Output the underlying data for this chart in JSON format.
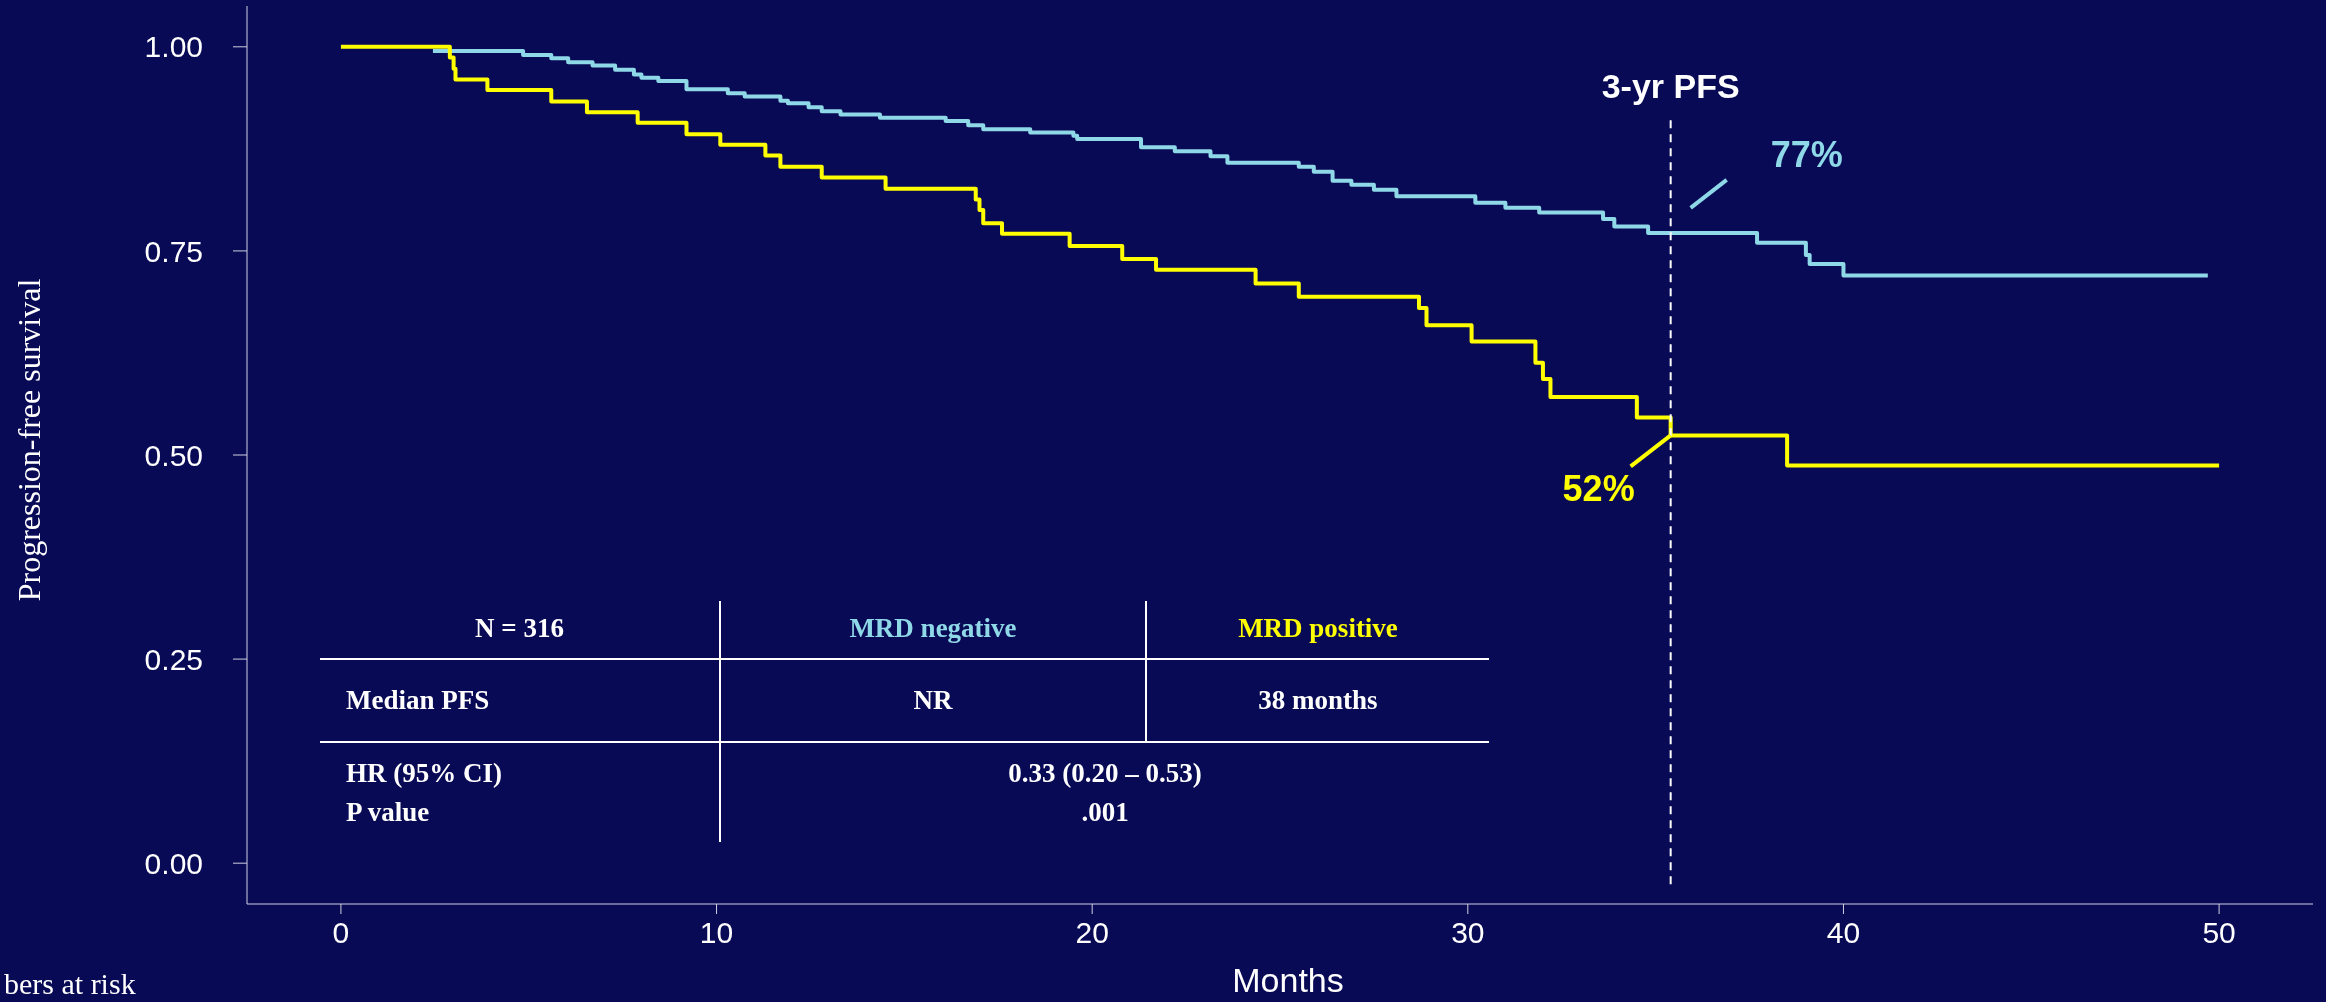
{
  "chart_data": {
    "type": "step",
    "ylabel": "Progression-free survival",
    "xlabel": "Months",
    "xlim": [
      -2.5,
      52.5
    ],
    "xticks": [
      0,
      10,
      20,
      30,
      40,
      50
    ],
    "ylim": [
      -0.05,
      1.05
    ],
    "yticks": [
      {
        "value": 0,
        "label": "0.00"
      },
      {
        "value": 0.25,
        "label": "0.25"
      },
      {
        "value": 0.5,
        "label": "0.50"
      },
      {
        "value": 0.75,
        "label": "0.75"
      },
      {
        "value": 1,
        "label": "1.00"
      }
    ],
    "marker": "none",
    "series": [
      {
        "name": "MRD negative",
        "color": "#8fd8e8",
        "x": [
          2.45,
          4.85,
          5.6,
          6.05,
          6.7,
          7.3,
          7.8,
          8.0,
          8.45,
          9.2,
          10.3,
          10.75,
          11.7,
          11.9,
          12.45,
          12.8,
          13.3,
          14.35,
          16.1,
          16.7,
          17.1,
          18.35,
          19.5,
          19.6,
          21.3,
          22.2,
          23.15,
          23.6,
          25.5,
          25.9,
          26.4,
          26.9,
          27.5,
          28.1,
          30.2,
          31.0,
          31.9,
          33.6,
          33.9,
          34.8,
          37.7,
          39.0,
          39.1,
          40.0,
          49.7
        ],
        "values": [
          0.995,
          0.99,
          0.986,
          0.981,
          0.977,
          0.972,
          0.966,
          0.962,
          0.958,
          0.948,
          0.943,
          0.939,
          0.934,
          0.931,
          0.926,
          0.921,
          0.917,
          0.913,
          0.909,
          0.904,
          0.899,
          0.895,
          0.891,
          0.887,
          0.877,
          0.872,
          0.866,
          0.858,
          0.853,
          0.847,
          0.836,
          0.831,
          0.825,
          0.817,
          0.809,
          0.803,
          0.797,
          0.789,
          0.78,
          0.772,
          0.76,
          0.745,
          0.734,
          0.72,
          0.72
        ]
      },
      {
        "name": "MRD positive",
        "color": "#ffff00",
        "x": [
          0,
          2.9,
          3.0,
          3.05,
          3.9,
          5.6,
          6.55,
          7.9,
          9.2,
          10.1,
          11.3,
          11.7,
          12.8,
          14.5,
          16.9,
          17.0,
          17.1,
          17.6,
          19.4,
          20.8,
          21.7,
          24.35,
          25.5,
          28.7,
          28.9,
          30.1,
          31.8,
          32.0,
          32.2,
          34.5,
          35.4,
          38.5,
          50.0
        ],
        "values": [
          1.0,
          0.987,
          0.973,
          0.96,
          0.947,
          0.933,
          0.92,
          0.907,
          0.893,
          0.88,
          0.867,
          0.853,
          0.84,
          0.826,
          0.813,
          0.8,
          0.784,
          0.771,
          0.756,
          0.74,
          0.727,
          0.71,
          0.694,
          0.68,
          0.659,
          0.639,
          0.613,
          0.593,
          0.571,
          0.546,
          0.524,
          0.487,
          0.487
        ]
      }
    ],
    "ref_lines": [
      {
        "axis": "x",
        "value": 35.4,
        "label": "3-yr PFS",
        "color": "#ffffff",
        "line_style": "dashed"
      }
    ],
    "annotations": [
      "N = 316",
      "Median PFS",
      "NR",
      "38 months",
      "HR (95% CI)",
      "P value",
      "0.33 (0.20 – 0.53)",
      ".001",
      "77%",
      "52%",
      "bers at risk"
    ]
  }
}
